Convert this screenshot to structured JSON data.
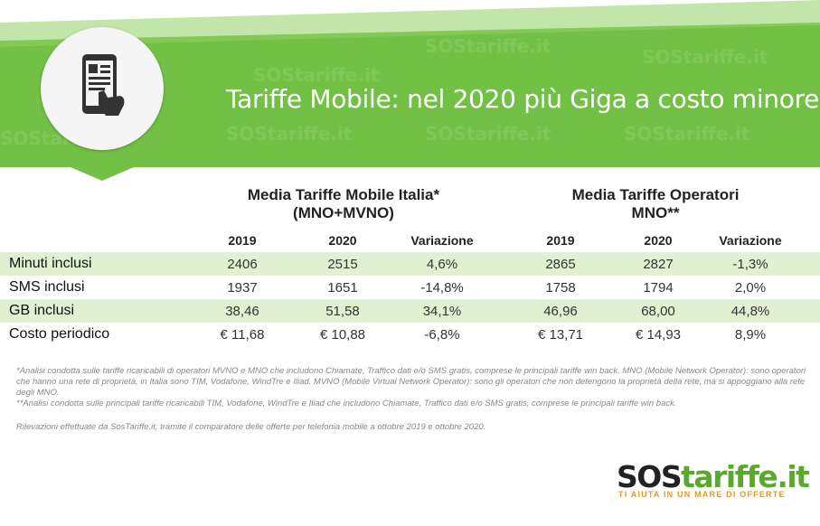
{
  "colors": {
    "brand_green": "#72c046",
    "dark_green": "#5ba82e",
    "row_shade": "#e0f0d0",
    "logo_orange": "#e39a1e"
  },
  "header": {
    "title": "Tariffe Mobile: nel 2020 più Giga a costo minore",
    "icon": "smartphone-touch-icon",
    "watermark": "SOStariffe.it"
  },
  "table": {
    "group1_title": "Media Tariffe Mobile Italia* (MNO+MVNO)",
    "group2_title": "Media Tariffe Operatori MNO**",
    "columns": [
      "2019",
      "2020",
      "Variazione",
      "2019",
      "2020",
      "Variazione"
    ],
    "rows": [
      {
        "label": "Minuti inclusi",
        "values": [
          "2406",
          "2515",
          "4,6%",
          "2865",
          "2827",
          "-1,3%"
        ]
      },
      {
        "label": "SMS inclusi",
        "values": [
          "1937",
          "1651",
          "-14,8%",
          "1758",
          "1794",
          "2,0%"
        ]
      },
      {
        "label": "GB inclusi",
        "values": [
          "38,46",
          "51,58",
          "34,1%",
          "46,96",
          "68,00",
          "44,8%"
        ]
      },
      {
        "label": "Costo periodico",
        "values": [
          "€ 11,68",
          "€ 10,88",
          "-6,8%",
          "€ 13,71",
          "€ 14,93",
          "8,9%"
        ]
      }
    ]
  },
  "notes": {
    "note1": "*Analisi condotta sulle tariffe ricaricabili di operatori MVNO e MNO che includono Chiamate, Traffico dati e/o SMS gratis, comprese le principali tariffe win back. MNO (Mobile Network Operator): sono operatori che hanno una rete di proprietà, in Italia sono TIM, Vodafone, WindTre e Iliad. MVNO (Mobile Virtual Network Operator): sono gli operatori che non detengono la proprietà della rete, ma si appoggiano alla rete degli MNO.",
    "note2": "**Analisi condotta sulle principali tariffe ricaricabili TIM, Vodafone, WindTre e Iliad che includono Chiamate, Traffico dati e/o SMS gratis, comprese le principali tariffe win back.",
    "survey": "Rilevazioni effettuate da SosTariffe.it, tramite il comparatore delle offerte per telefonia mobile a ottobre 2019 e ottobre 2020."
  },
  "logo": {
    "sos": "SOS",
    "rest": "tariffe.it",
    "tagline": "TI AIUTA IN UN MARE DI OFFERTE"
  }
}
